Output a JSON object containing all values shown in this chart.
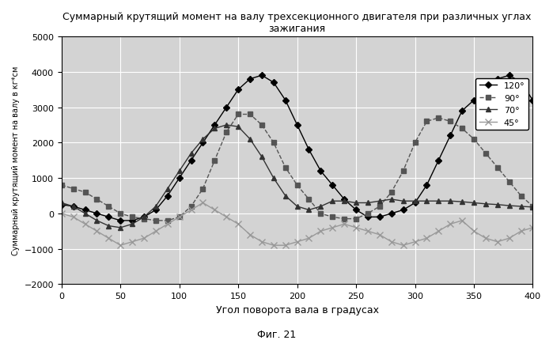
{
  "title": "Суммарный крутящий момент на валу трехсекционного двигателя при различных углах\nзажигания",
  "xlabel": "Угол поворота вала в градусах",
  "ylabel": "Суммарный крутящий момент на валу в кг*см",
  "fig_label": "Фиг. 21",
  "xlim": [
    0,
    400
  ],
  "ylim": [
    -2000,
    5000
  ],
  "xticks": [
    0,
    50,
    100,
    150,
    200,
    250,
    300,
    350,
    400
  ],
  "yticks": [
    -2000,
    -1000,
    0,
    1000,
    2000,
    3000,
    4000,
    5000
  ],
  "legend_labels": [
    "120°",
    "90°",
    "70°",
    "45°"
  ],
  "line_colors": [
    "#000000",
    "#555555",
    "#333333",
    "#999999"
  ],
  "line_styles": [
    "-",
    "--",
    "-",
    "-"
  ],
  "markers": [
    "D",
    "s",
    "^",
    "x"
  ],
  "marker_sizes": [
    4,
    4,
    5,
    6
  ],
  "background_color": "#d3d3d3",
  "grid_color": "#ffffff",
  "series_120": {
    "x": [
      0,
      10,
      20,
      30,
      40,
      50,
      60,
      70,
      80,
      90,
      100,
      110,
      120,
      130,
      140,
      150,
      160,
      170,
      180,
      190,
      200,
      210,
      220,
      230,
      240,
      250,
      260,
      270,
      280,
      290,
      300,
      310,
      320,
      330,
      340,
      350,
      360,
      370,
      380,
      390,
      400
    ],
    "y": [
      250,
      200,
      100,
      0,
      -100,
      -200,
      -200,
      -100,
      100,
      500,
      1000,
      1500,
      2000,
      2500,
      3000,
      3500,
      3800,
      3900,
      3700,
      3200,
      2500,
      1800,
      1200,
      800,
      400,
      100,
      -100,
      -100,
      0,
      100,
      300,
      800,
      1500,
      2200,
      2900,
      3200,
      3500,
      3800,
      3900,
      3700,
      3200
    ]
  },
  "series_90": {
    "x": [
      0,
      10,
      20,
      30,
      40,
      50,
      60,
      70,
      80,
      90,
      100,
      110,
      120,
      130,
      140,
      150,
      160,
      170,
      180,
      190,
      200,
      210,
      220,
      230,
      240,
      250,
      260,
      270,
      280,
      290,
      300,
      310,
      320,
      330,
      340,
      350,
      360,
      370,
      380,
      390,
      400
    ],
    "y": [
      800,
      700,
      600,
      400,
      200,
      0,
      -100,
      -150,
      -200,
      -200,
      -100,
      200,
      700,
      1500,
      2300,
      2800,
      2800,
      2500,
      2000,
      1300,
      800,
      400,
      0,
      -100,
      -150,
      -150,
      0,
      200,
      600,
      1200,
      2000,
      2600,
      2700,
      2600,
      2400,
      2100,
      1700,
      1300,
      900,
      500,
      200
    ]
  },
  "series_70": {
    "x": [
      0,
      10,
      20,
      30,
      40,
      50,
      60,
      70,
      80,
      90,
      100,
      110,
      120,
      130,
      140,
      150,
      160,
      170,
      180,
      190,
      200,
      210,
      220,
      230,
      240,
      250,
      260,
      270,
      280,
      290,
      300,
      310,
      320,
      330,
      340,
      350,
      360,
      370,
      380,
      390,
      400
    ],
    "y": [
      300,
      200,
      0,
      -200,
      -350,
      -400,
      -300,
      -100,
      200,
      700,
      1200,
      1700,
      2100,
      2400,
      2500,
      2450,
      2100,
      1600,
      1000,
      500,
      200,
      100,
      200,
      350,
      350,
      300,
      300,
      350,
      400,
      350,
      350,
      350,
      350,
      350,
      330,
      300,
      270,
      250,
      220,
      200,
      180
    ]
  },
  "series_45": {
    "x": [
      0,
      10,
      20,
      30,
      40,
      50,
      60,
      70,
      80,
      90,
      100,
      110,
      120,
      130,
      140,
      150,
      160,
      170,
      180,
      190,
      200,
      210,
      220,
      230,
      240,
      250,
      260,
      270,
      280,
      290,
      300,
      310,
      320,
      330,
      340,
      350,
      360,
      370,
      380,
      390,
      400
    ],
    "y": [
      0,
      -100,
      -300,
      -500,
      -700,
      -900,
      -800,
      -700,
      -500,
      -300,
      -100,
      100,
      300,
      100,
      -100,
      -300,
      -600,
      -800,
      -900,
      -900,
      -800,
      -700,
      -500,
      -400,
      -300,
      -400,
      -500,
      -600,
      -800,
      -900,
      -800,
      -700,
      -500,
      -300,
      -200,
      -500,
      -700,
      -800,
      -700,
      -500,
      -400
    ]
  }
}
